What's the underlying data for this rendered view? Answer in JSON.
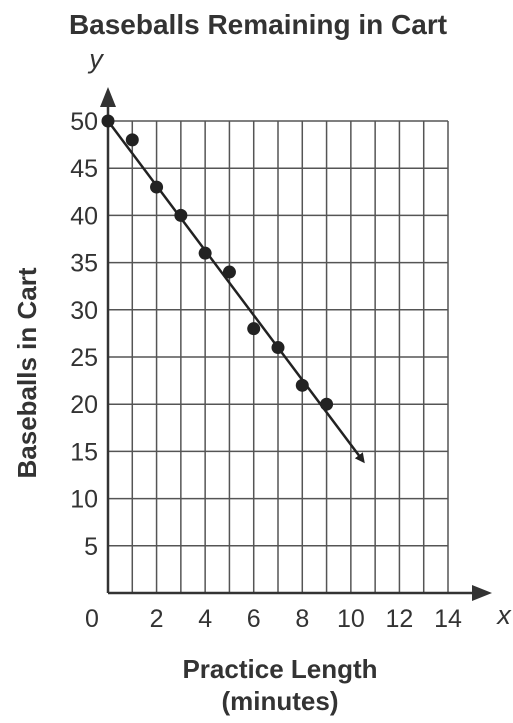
{
  "chart_data": {
    "type": "scatter",
    "title": "Baseballs Remaining in Cart",
    "xlabel_lines": [
      "Practice Length",
      "(minutes)"
    ],
    "ylabel": "Baseballs in Cart",
    "x_axis_letter": "x",
    "y_axis_letter": "y",
    "origin_label": "0",
    "xlim": [
      0,
      14
    ],
    "ylim": [
      0,
      50
    ],
    "x_ticks": [
      2,
      4,
      6,
      8,
      10,
      12,
      14
    ],
    "y_ticks": [
      5,
      10,
      15,
      20,
      25,
      30,
      35,
      40,
      45,
      50
    ],
    "grid": true,
    "points": [
      {
        "x": 0,
        "y": 50
      },
      {
        "x": 1,
        "y": 48
      },
      {
        "x": 2,
        "y": 43
      },
      {
        "x": 3,
        "y": 40
      },
      {
        "x": 4,
        "y": 36
      },
      {
        "x": 5,
        "y": 34
      },
      {
        "x": 6,
        "y": 28
      },
      {
        "x": 7,
        "y": 26
      },
      {
        "x": 8,
        "y": 22
      },
      {
        "x": 9,
        "y": 20
      }
    ],
    "trend_line": {
      "from": {
        "x": 0,
        "y": 50
      },
      "to": {
        "x": 10.5,
        "y": 14
      },
      "arrow_end": true
    },
    "colors": {
      "ink": "#333333",
      "grid": "#555555",
      "point": "#222222"
    }
  }
}
